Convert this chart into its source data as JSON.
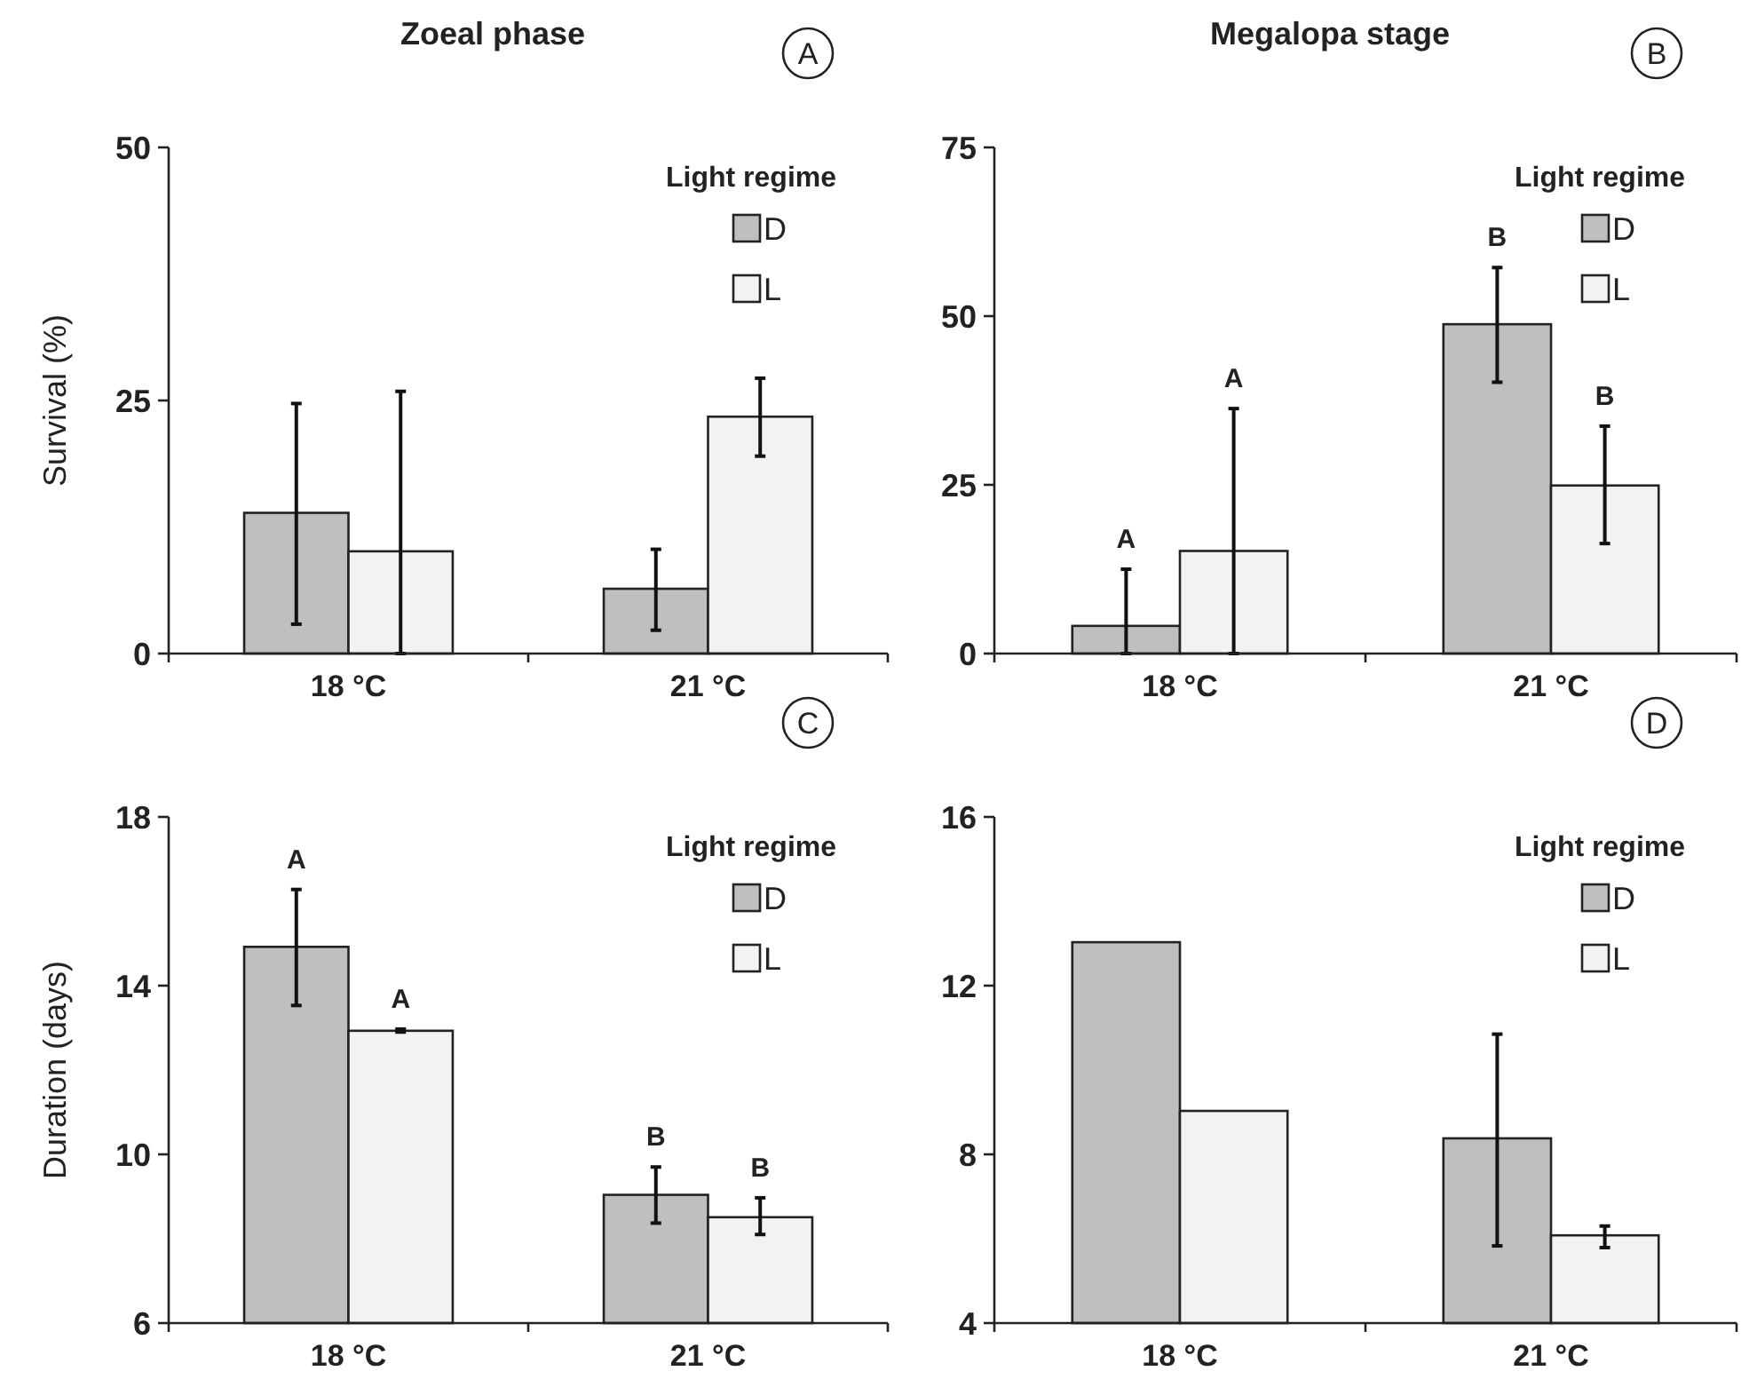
{
  "chart_data": [
    {
      "type": "bar",
      "title": "Zoeal phase",
      "ylabel": "Survival (%)",
      "legend_title": "Light regime",
      "legend": "top right",
      "categories": [
        "18 °C",
        "21 °C"
      ],
      "ylim": [
        0,
        50
      ],
      "yticks": [
        0,
        25,
        50
      ],
      "series": [
        {
          "name": "D",
          "color": "#bfbfbf",
          "values": [
            13.9,
            6.4
          ],
          "errors": [
            [
              2.9,
              24.7
            ],
            [
              2.3,
              10.3
            ]
          ]
        },
        {
          "name": "L",
          "color": "#f2f2f2",
          "values": [
            10.1,
            23.4
          ],
          "errors": [
            [
              0,
              25.9
            ],
            [
              19.5,
              27.2
            ]
          ]
        }
      ],
      "annotations": [
        "A"
      ]
    },
    {
      "type": "bar",
      "title": "Megalopa stage",
      "legend_title": "Light regime",
      "legend": "top right",
      "categories": [
        "18 °C",
        "21 °C"
      ],
      "ylim": [
        0,
        75
      ],
      "yticks": [
        0,
        25,
        50,
        75
      ],
      "series": [
        {
          "name": "D",
          "color": "#bfbfbf",
          "values": [
            4.1,
            48.8
          ],
          "errors": [
            [
              0,
              12.5
            ],
            [
              40.2,
              57.2
            ]
          ]
        },
        {
          "name": "L",
          "color": "#f2f2f2",
          "values": [
            15.2,
            24.9
          ],
          "errors": [
            [
              0,
              36.3
            ],
            [
              16.3,
              33.7
            ]
          ]
        }
      ],
      "annotations": [
        "B",
        "A",
        "A",
        "B",
        "B"
      ]
    },
    {
      "type": "bar",
      "ylabel": "Duration (days)",
      "legend_title": "Light regime",
      "legend": "top right",
      "categories": [
        "18 °C",
        "21 °C"
      ],
      "ylim": [
        6,
        18
      ],
      "yticks": [
        6,
        10,
        14,
        18
      ],
      "series": [
        {
          "name": "D",
          "color": "#bfbfbf",
          "values": [
            14.92,
            9.04
          ],
          "errors": [
            [
              13.53,
              16.28
            ],
            [
              8.37,
              9.7
            ]
          ]
        },
        {
          "name": "L",
          "color": "#f2f2f2",
          "values": [
            12.93,
            8.51
          ],
          "errors": [
            [
              12.9,
              12.97
            ],
            [
              8.1,
              8.97
            ]
          ]
        }
      ],
      "annotations": [
        "C",
        "A",
        "A",
        "B",
        "B"
      ]
    },
    {
      "type": "bar",
      "legend_title": "Light regime",
      "legend": "top right",
      "categories": [
        "18 °C",
        "21 °C"
      ],
      "ylim": [
        4,
        16
      ],
      "yticks": [
        4,
        8,
        12,
        16
      ],
      "series": [
        {
          "name": "D",
          "color": "#bfbfbf",
          "values": [
            13.03,
            8.38
          ],
          "errors": [
            null,
            [
              5.83,
              10.85
            ]
          ]
        },
        {
          "name": "L",
          "color": "#f2f2f2",
          "values": [
            9.03,
            6.08
          ],
          "errors": [
            null,
            [
              5.79,
              6.3
            ]
          ]
        }
      ],
      "annotations": [
        "D"
      ]
    }
  ]
}
